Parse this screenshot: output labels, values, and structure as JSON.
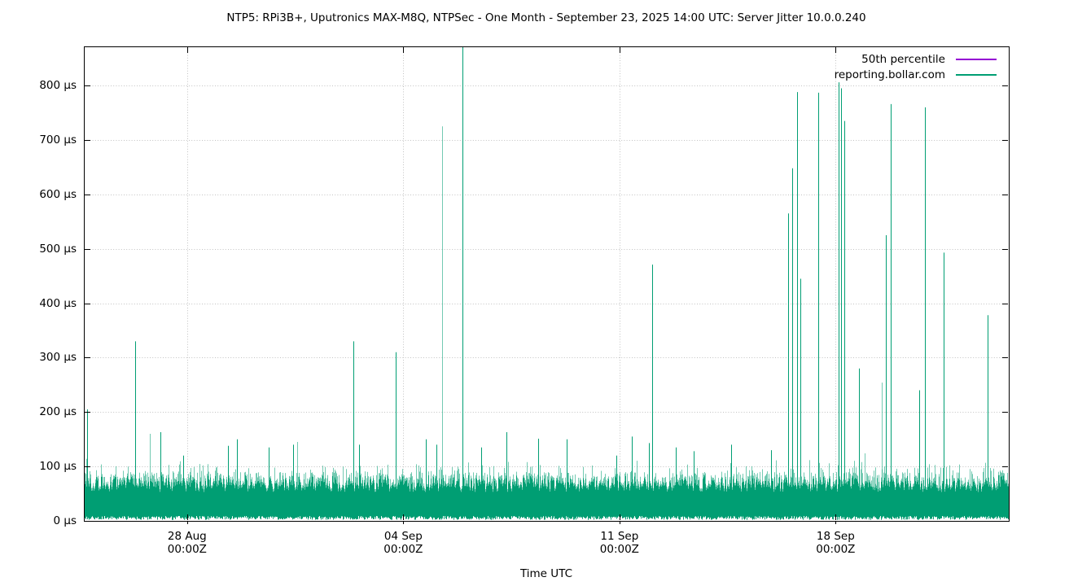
{
  "page": {
    "background": "#ffffff"
  },
  "chart_data": {
    "type": "line",
    "title": "NTP5: RPi3B+, Uputronics MAX-M8Q, NTPSec - One Month - September 23, 2025 14:00 UTC: Server Jitter 10.0.0.240",
    "xlabel": "Time UTC",
    "ylabel": "",
    "grid": {
      "horizontal": true,
      "vertical": true,
      "style": "dotted",
      "color": "#c2c2c2"
    },
    "legend": {
      "position": "top-right-inside",
      "entries": [
        {
          "label": "50th percentile",
          "color": "#9400d3"
        },
        {
          "label": "reporting.bollar.com",
          "color": "#009e73"
        }
      ]
    },
    "axes": {
      "y": {
        "unit": "µs",
        "ylim": [
          0,
          872
        ],
        "ticks": [
          {
            "value": 0,
            "label": "0 µs"
          },
          {
            "value": 100,
            "label": "100 µs"
          },
          {
            "value": 200,
            "label": "200 µs"
          },
          {
            "value": 300,
            "label": "300 µs"
          },
          {
            "value": 400,
            "label": "400 µs"
          },
          {
            "value": 500,
            "label": "500 µs"
          },
          {
            "value": 600,
            "label": "600 µs"
          },
          {
            "value": 700,
            "label": "700 µs"
          },
          {
            "value": 800,
            "label": "800 µs"
          }
        ]
      },
      "x": {
        "span_days": 29.95,
        "ticks": [
          {
            "day": 3.344,
            "date": "28 Aug",
            "time": "00:00Z"
          },
          {
            "day": 10.344,
            "date": "04 Sep",
            "time": "00:00Z"
          },
          {
            "day": 17.344,
            "date": "11 Sep",
            "time": "00:00Z"
          },
          {
            "day": 24.344,
            "date": "18 Sep",
            "time": "00:00Z"
          }
        ]
      }
    },
    "series": [
      {
        "name": "50th percentile",
        "color": "#9400d3",
        "note": "trace not visibly distinct; hidden behind jitter trace near baseline"
      },
      {
        "name": "reporting.bollar.com",
        "color": "#009e73",
        "soft_color": "rgba(0,158,115,0.55)",
        "noise_band_us": {
          "bottom_range": [
            2,
            9
          ],
          "solid_top_range": [
            62,
            84
          ],
          "typical_tip_range": [
            85,
            115
          ],
          "occasional_tips_to": 165
        },
        "spikes": [
          {
            "d": 0.105,
            "us": 205
          },
          {
            "d": 1.661,
            "us": 330
          },
          {
            "d": 2.135,
            "us": 160,
            "soft": true
          },
          {
            "d": 2.478,
            "us": 163
          },
          {
            "d": 3.216,
            "us": 120
          },
          {
            "d": 4.666,
            "us": 138
          },
          {
            "d": 4.956,
            "us": 150
          },
          {
            "d": 5.984,
            "us": 135
          },
          {
            "d": 6.775,
            "us": 140
          },
          {
            "d": 6.907,
            "us": 145,
            "soft": true
          },
          {
            "d": 8.726,
            "us": 330
          },
          {
            "d": 8.911,
            "us": 140
          },
          {
            "d": 10.097,
            "us": 310
          },
          {
            "d": 11.073,
            "us": 150
          },
          {
            "d": 11.415,
            "us": 140
          },
          {
            "d": 11.6,
            "us": 725,
            "soft": true
          },
          {
            "d": 12.259,
            "us": 880,
            "clipped": true
          },
          {
            "d": 12.865,
            "us": 135
          },
          {
            "d": 13.682,
            "us": 163
          },
          {
            "d": 14.711,
            "us": 151
          },
          {
            "d": 15.633,
            "us": 150
          },
          {
            "d": 17.242,
            "us": 120
          },
          {
            "d": 17.743,
            "us": 155
          },
          {
            "d": 18.297,
            "us": 143
          },
          {
            "d": 18.402,
            "us": 471
          },
          {
            "d": 19.166,
            "us": 135
          },
          {
            "d": 19.747,
            "us": 128
          },
          {
            "d": 20.959,
            "us": 140
          },
          {
            "d": 22.251,
            "us": 130
          },
          {
            "d": 22.805,
            "us": 565
          },
          {
            "d": 22.937,
            "us": 648
          },
          {
            "d": 23.095,
            "us": 788
          },
          {
            "d": 23.2,
            "us": 445
          },
          {
            "d": 23.781,
            "us": 787
          },
          {
            "d": 24.44,
            "us": 806
          },
          {
            "d": 24.519,
            "us": 795
          },
          {
            "d": 24.624,
            "us": 735
          },
          {
            "d": 25.099,
            "us": 280
          },
          {
            "d": 25.837,
            "us": 254,
            "soft": true
          },
          {
            "d": 25.969,
            "us": 525
          },
          {
            "d": 26.127,
            "us": 766
          },
          {
            "d": 27.05,
            "us": 240
          },
          {
            "d": 27.234,
            "us": 760
          },
          {
            "d": 27.841,
            "us": 493
          },
          {
            "d": 29.265,
            "us": 378
          }
        ]
      }
    ]
  }
}
